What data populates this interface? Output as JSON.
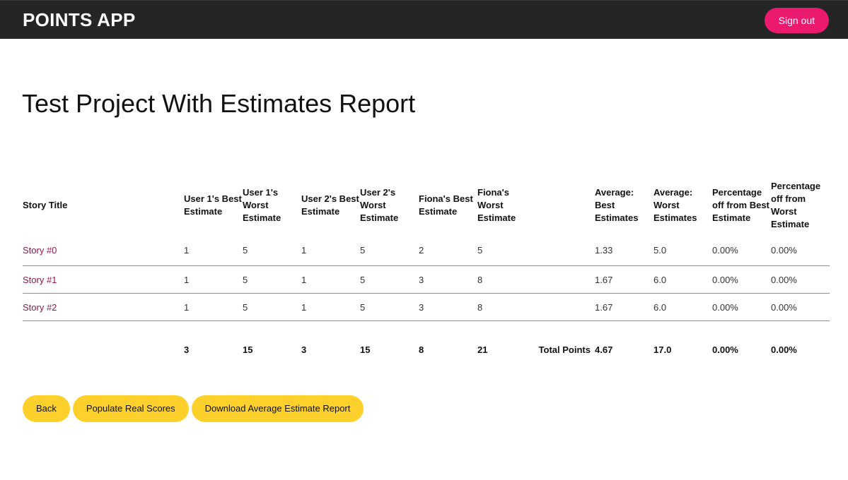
{
  "header": {
    "brand": "POINTS APP",
    "signout_label": "Sign out"
  },
  "page": {
    "title": "Test Project With Estimates Report"
  },
  "table": {
    "headers": [
      "Story Title",
      "User 1's Best Estimate",
      "User 1's Worst Estimate",
      "User 2's Best Estimate",
      "User 2's Worst Estimate",
      "Fiona's Best Estimate",
      "Fiona's Worst Estimate",
      "",
      "Average: Best Estimates",
      "Average: Worst Estimates",
      "Percentage off from Best Estimate",
      "Percentage off from Worst Estimate"
    ],
    "rows": [
      {
        "title": "Story #0",
        "u1_best": "1",
        "u1_worst": "5",
        "u2_best": "1",
        "u2_worst": "5",
        "f_best": "2",
        "f_worst": "5",
        "avg_best": "1.33",
        "avg_worst": "5.0",
        "pct_best": "0.00%",
        "pct_worst": "0.00%"
      },
      {
        "title": "Story #1",
        "u1_best": "1",
        "u1_worst": "5",
        "u2_best": "1",
        "u2_worst": "5",
        "f_best": "3",
        "f_worst": "8",
        "avg_best": "1.67",
        "avg_worst": "6.0",
        "pct_best": "0.00%",
        "pct_worst": "0.00%"
      },
      {
        "title": "Story #2",
        "u1_best": "1",
        "u1_worst": "5",
        "u2_best": "1",
        "u2_worst": "5",
        "f_best": "3",
        "f_worst": "8",
        "avg_best": "1.67",
        "avg_worst": "6.0",
        "pct_best": "0.00%",
        "pct_worst": "0.00%"
      }
    ],
    "totals": {
      "u1_best": "3",
      "u1_worst": "15",
      "u2_best": "3",
      "u2_worst": "15",
      "f_best": "8",
      "f_worst": "21",
      "label": "Total Points",
      "avg_best": "4.67",
      "avg_worst": "17.0",
      "pct_best": "0.00%",
      "pct_worst": "0.00%"
    }
  },
  "actions": {
    "back_label": "Back",
    "populate_label": "Populate Real Scores",
    "download_label": "Download Average Estimate Report"
  },
  "colors": {
    "navbar": "#252525",
    "signout": "#ec1a6f",
    "action_buttons": "#fdd02b",
    "story_link": "#8a1c4f"
  }
}
